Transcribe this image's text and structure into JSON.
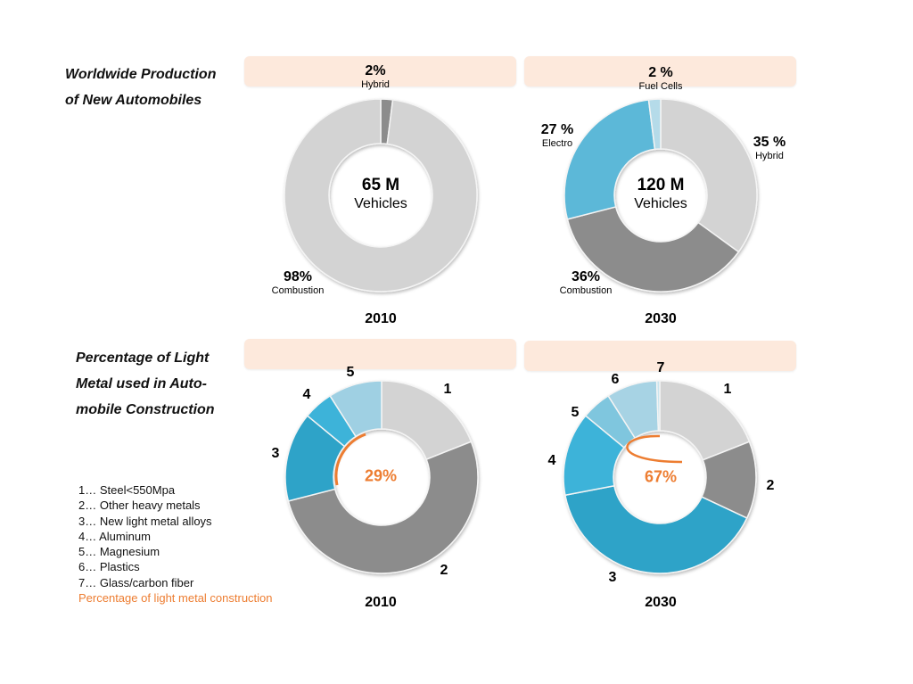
{
  "sections": {
    "production_title_line1": "Worldwide Production",
    "production_title_line2": "of New Automobiles",
    "lightmetal_title_line1": "Percentage of Light",
    "lightmetal_title_line2": "Metal used in Auto-",
    "lightmetal_title_line3": "mobile Construction"
  },
  "legend": {
    "items": [
      "1… Steel<550Mpa",
      "2… Other heavy  metals",
      "3… New light metal alloys",
      "4… Aluminum",
      "5… Magnesium",
      "6… Plastics",
      "7… Glass/carbon fiber"
    ],
    "highlight": "Percentage of light metal construction",
    "highlight_color": "#ed7d31"
  },
  "chart_data": [
    {
      "type": "pie",
      "variant": "donut",
      "title": "Worldwide Production of New Automobiles",
      "year": "2010",
      "center_value": "65 M",
      "center_unit": "Vehicles",
      "categories": [
        "Hybrid",
        "Combustion"
      ],
      "values": [
        2,
        98
      ],
      "labels": [
        {
          "value": "2%",
          "name": "Hybrid"
        },
        {
          "value": "98%",
          "name": "Combustion"
        }
      ],
      "colors": [
        "#8c8c8c",
        "#d3d3d3"
      ]
    },
    {
      "type": "pie",
      "variant": "donut",
      "title": "Worldwide Production of New Automobiles",
      "year": "2030",
      "center_value": "120 M",
      "center_unit": "Vehicles",
      "categories": [
        "Hybrid",
        "Combustion",
        "Electro",
        "Fuel Cells"
      ],
      "values": [
        35,
        36,
        27,
        2
      ],
      "labels": [
        {
          "value": "35 %",
          "name": "Hybrid"
        },
        {
          "value": "36%",
          "name": "Combustion"
        },
        {
          "value": "27 %",
          "name": "Electro"
        },
        {
          "value": "2 %",
          "name": "Fuel Cells"
        }
      ],
      "colors": [
        "#d3d3d3",
        "#8c8c8c",
        "#5bb8d8",
        "#b5dbe9"
      ]
    },
    {
      "type": "pie",
      "variant": "donut",
      "title": "Percentage of Light Metal used in Automobile Construction",
      "year": "2010",
      "light_metal_percentage": "29%",
      "categories": [
        "1",
        "2",
        "3",
        "4",
        "5"
      ],
      "values": [
        19,
        52,
        15,
        5,
        9
      ],
      "colors": [
        "#d3d3d3",
        "#8c8c8c",
        "#2ea3c8",
        "#3cb3d9",
        "#9fd0e3"
      ]
    },
    {
      "type": "pie",
      "variant": "donut",
      "title": "Percentage of Light Metal used in Automobile Construction",
      "year": "2030",
      "light_metal_percentage": "67%",
      "categories": [
        "1",
        "2",
        "3",
        "4",
        "5",
        "6",
        "7"
      ],
      "values": [
        19,
        13,
        40,
        14,
        5,
        8.5,
        0.5
      ],
      "colors": [
        "#d3d3d3",
        "#8c8c8c",
        "#2ea3c8",
        "#3cb3d9",
        "#7fc6de",
        "#a7d3e4",
        "#c9e4ee"
      ]
    }
  ]
}
